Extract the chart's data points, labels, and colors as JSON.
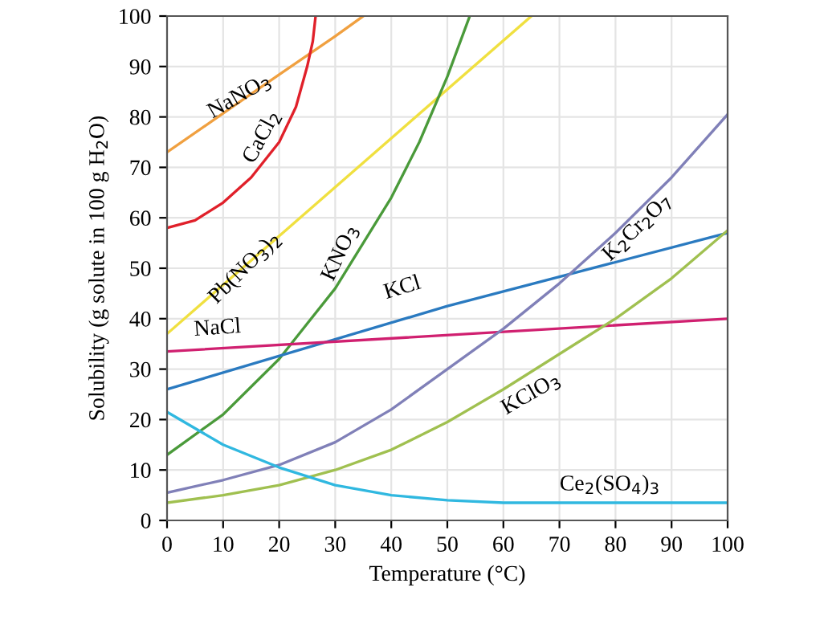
{
  "chart_data": {
    "type": "line",
    "xlabel": "Temperature (°C)",
    "ylabel": "Solubility (g solute in 100 g H$_{2}$O)",
    "xlim": [
      0,
      100
    ],
    "ylim": [
      0,
      100
    ],
    "xticks": [
      0,
      10,
      20,
      30,
      40,
      50,
      60,
      70,
      80,
      90,
      100
    ],
    "yticks": [
      0,
      10,
      20,
      30,
      40,
      50,
      60,
      70,
      80,
      90,
      100
    ],
    "grid": true,
    "legend": false,
    "marker": "none",
    "line_style": "solid",
    "series": [
      {
        "name": "NaNO$_{3}$",
        "color": "#f0a040",
        "x": [
          0,
          10,
          20,
          30,
          35
        ],
        "values": [
          73,
          80.7,
          88.4,
          96,
          100
        ]
      },
      {
        "name": "CaCl$_{2}$",
        "color": "#e0202a",
        "x": [
          0,
          5,
          10,
          15,
          20,
          23,
          25,
          26,
          26.5
        ],
        "values": [
          58,
          59.5,
          63,
          68,
          75,
          82,
          90,
          95,
          100
        ]
      },
      {
        "name": "Pb(NO$_{3}$)$_{2}$",
        "color": "#f0e040",
        "x": [
          0,
          65
        ],
        "values": [
          37,
          100
        ]
      },
      {
        "name": "KNO$_{3}$",
        "color": "#4a9a3a",
        "x": [
          0,
          10,
          20,
          25,
          30,
          40,
          45,
          50,
          54
        ],
        "values": [
          13,
          21,
          32,
          39,
          46,
          64,
          75,
          88,
          100
        ]
      },
      {
        "name": "KCl",
        "color": "#2a7ac0",
        "x": [
          0,
          50,
          100
        ],
        "values": [
          26,
          42.5,
          57
        ]
      },
      {
        "name": "NaCl",
        "color": "#d02070",
        "x": [
          0,
          100
        ],
        "values": [
          33.5,
          40
        ]
      },
      {
        "name": "K$_{2}$Cr$_{2}$O$_{7}$",
        "color": "#8080b8",
        "x": [
          0,
          10,
          20,
          30,
          40,
          50,
          60,
          70,
          80,
          90,
          100
        ],
        "values": [
          5.5,
          8,
          11,
          15.5,
          22,
          30,
          38,
          47,
          57,
          68,
          80.5
        ]
      },
      {
        "name": "KClO$_{3}$",
        "color": "#a0c050",
        "x": [
          0,
          10,
          20,
          30,
          40,
          50,
          60,
          70,
          80,
          90,
          100
        ],
        "values": [
          3.5,
          5,
          7,
          10,
          14,
          19.5,
          26,
          33,
          40,
          48,
          57.5
        ]
      },
      {
        "name": "Ce$_{2}$(SO$_{4}$)$_{3}$",
        "color": "#30b8e0",
        "x": [
          0,
          10,
          20,
          30,
          40,
          50,
          60,
          100
        ],
        "values": [
          21.5,
          15,
          10.5,
          7,
          5,
          4,
          3.5,
          3.5
        ]
      }
    ]
  }
}
